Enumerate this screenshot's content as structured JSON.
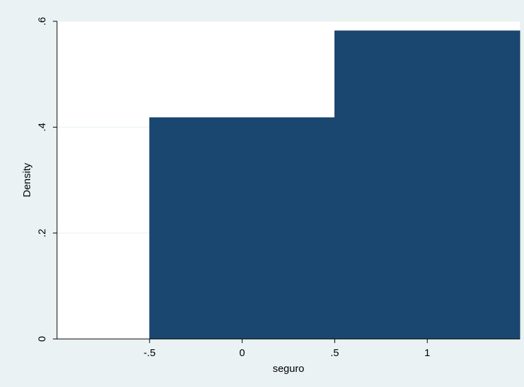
{
  "chart_data": {
    "type": "bar",
    "title": "",
    "xlabel": "seguro",
    "ylabel": "Density",
    "bins": [
      {
        "x0": -0.5,
        "x1": 0.5,
        "density": 0.418
      },
      {
        "x0": 0.5,
        "x1": 1.5,
        "density": 0.582
      }
    ],
    "xlim": [
      -1,
      1.5
    ],
    "ylim": [
      0,
      0.6
    ],
    "xticks": [
      {
        "value": -0.5,
        "label": "-.5"
      },
      {
        "value": 0,
        "label": "0"
      },
      {
        "value": 0.5,
        "label": ".5"
      },
      {
        "value": 1,
        "label": "1"
      }
    ],
    "yticks": [
      {
        "value": 0,
        "label": "0"
      },
      {
        "value": 0.2,
        "label": ".2"
      },
      {
        "value": 0.4,
        "label": ".4"
      },
      {
        "value": 0.6,
        "label": ".6"
      }
    ],
    "grid": true,
    "colors": {
      "outer_background": "#eaf2f3",
      "plot_background": "#ffffff",
      "bar_fill": "#1a476f",
      "gridline": "#eaf2f3",
      "axis": "#000000"
    }
  }
}
